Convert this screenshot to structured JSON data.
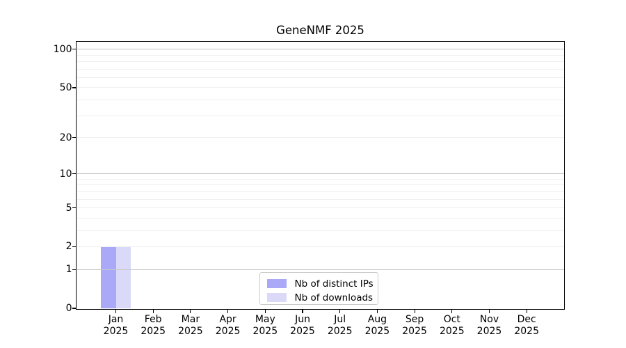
{
  "chart_data": {
    "type": "bar",
    "title": "GeneNMF 2025",
    "categories": [
      "Jan 2025",
      "Feb 2025",
      "Mar 2025",
      "Apr 2025",
      "May 2025",
      "Jun 2025",
      "Jul 2025",
      "Aug 2025",
      "Sep 2025",
      "Oct 2025",
      "Nov 2025",
      "Dec 2025"
    ],
    "series": [
      {
        "name": "Nb of distinct IPs",
        "color": "#a9a9f7",
        "values": [
          2,
          0,
          0,
          0,
          0,
          0,
          0,
          0,
          0,
          0,
          0,
          0
        ]
      },
      {
        "name": "Nb of downloads",
        "color": "#dadaf8",
        "values": [
          2,
          0,
          0,
          0,
          0,
          0,
          0,
          0,
          0,
          0,
          0,
          0
        ]
      }
    ],
    "yscale": "log1p",
    "ylim": [
      0,
      114.6
    ],
    "yticks": [
      0,
      1,
      2,
      5,
      10,
      20,
      50,
      100
    ],
    "grid": {
      "major_values": [
        1,
        10,
        100
      ],
      "minor_values": [
        2,
        3,
        4,
        5,
        6,
        7,
        8,
        9,
        20,
        30,
        40,
        50,
        60,
        70,
        80,
        90
      ]
    },
    "legend_position": "lower center",
    "colors": {
      "axis": "#000000",
      "major_grid": "#c6c6c6",
      "minor_grid": "#efefef",
      "legend_border": "#cccccc",
      "background": "#ffffff"
    }
  }
}
